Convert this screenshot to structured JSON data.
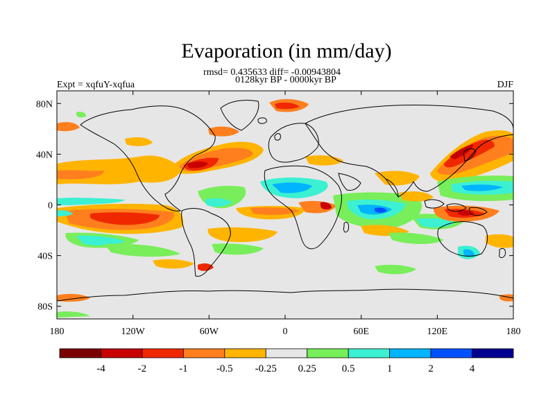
{
  "title": "Evaporation (in mm/day)",
  "stats_line": "rmsd= 0.435633 diff= -0.00943804",
  "period_line": "0128kyr BP - 0000kyr BP",
  "experiment_label": "Expt = xqfuY-xqfua",
  "season_label": "DJF",
  "lat_ticks": [
    "80N",
    "40N",
    "0",
    "40S",
    "80S"
  ],
  "lat_values": [
    80,
    40,
    0,
    -40,
    -80
  ],
  "lon_ticks": [
    "180",
    "120W",
    "60W",
    "0",
    "60E",
    "120E",
    "180"
  ],
  "lon_values": [
    -180,
    -120,
    -60,
    0,
    60,
    120,
    180
  ],
  "map_extent": {
    "lon": [
      -180,
      180
    ],
    "lat": [
      -90,
      90
    ]
  },
  "colorbar": {
    "labels": [
      "-4",
      "-2",
      "-1",
      "-0.5",
      "-0.25",
      "0.25",
      "0.5",
      "1",
      "2",
      "4"
    ],
    "colors": [
      "#7a0000",
      "#c80000",
      "#f02800",
      "#ff7f1e",
      "#ffb400",
      "#e6e6e6",
      "#78ee5a",
      "#3cf0d2",
      "#00b4ff",
      "#0050ff",
      "#000090"
    ]
  },
  "background_color": "#e6e6e6"
}
